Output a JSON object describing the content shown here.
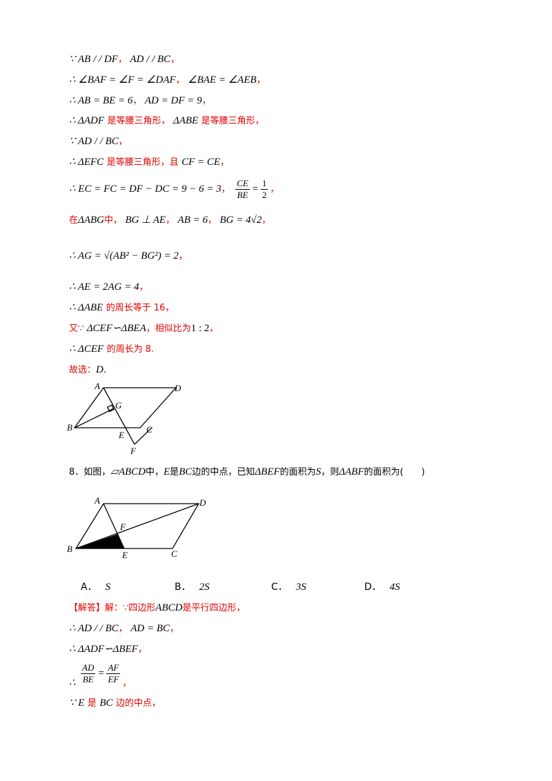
{
  "lines": {
    "l1": {
      "m": "∵ AB / / DF",
      "t": "，",
      "m2": "AD / / BC",
      "t2": "，"
    },
    "l2": {
      "m": "∴ ∠BAF = ∠F = ∠DAF",
      "t": "，",
      "m2": "∠BAE = ∠AEB",
      "t2": "，"
    },
    "l3": {
      "m": "∴ AB = BE = 6",
      "t": "，",
      "m2": "AD = DF = 9",
      "t2": "，"
    },
    "l4": {
      "m": "∴ ΔADF",
      "t": "是等腰三角形，",
      "m2": "ΔABE",
      "t2": "是等腰三角形，"
    },
    "l5": {
      "m": "∵ AD / / BC",
      "t": "，"
    },
    "l6": {
      "m": "∴ ΔEFC",
      "t": "是等腰三角形，且",
      "m2": "CF = CE",
      "t2": "，"
    },
    "l7": {
      "m": "∴ EC = FC = DF − DC = 9 − 6 = 3",
      "t": "，",
      "num": "CE",
      "den": "BE",
      "eq": "=",
      "num2": "1",
      "den2": "2",
      "t2": "，"
    },
    "l8": {
      "t0": "在",
      "m": "ΔABG",
      "t": "中，",
      "m2": "BG ⊥ AE",
      "t2": "，",
      "m3": "AB = 6",
      "t3": "，",
      "m4": "BG = 4√2",
      "t4": "，"
    },
    "l9": {
      "m": "∴ AG = √(AB² − BG²) = 2",
      "t": "，"
    },
    "l10": {
      "m": "∴ AE = 2AG = 4",
      "t": "，"
    },
    "l11": {
      "m": "∴ ΔABE",
      "t": "的周长等于 16，"
    },
    "l12": {
      "t0": "又∵",
      "m": "ΔCEF∽ΔBEA",
      "t": "，相似比为",
      "m2": "1 : 2",
      "t2": "，"
    },
    "l13": {
      "m": "∴ ΔCEF",
      "t": "的周长为 8."
    },
    "l14": {
      "t": "故选：",
      "m": "D",
      "t2": "."
    }
  },
  "figure1": {
    "labels": [
      "A",
      "D",
      "G",
      "B",
      "E",
      "C",
      "F"
    ]
  },
  "question": {
    "number": "8．如图，",
    "shape": "▱ABCD",
    "t1": "中，",
    "e": "E",
    "t2": "是",
    "bc": "BC",
    "t3": "边的中点，已知",
    "bef": "ΔBEF",
    "t4": "的面积为",
    "s": "S",
    "t5": "，则",
    "abf": "ΔABF",
    "t6": "的面积为",
    "paren": "(　　)"
  },
  "figure2": {
    "labels": [
      "A",
      "D",
      "F",
      "B",
      "E",
      "C"
    ]
  },
  "options": [
    {
      "letter": "A．",
      "value": "S"
    },
    {
      "letter": "B．",
      "value": "2S"
    },
    {
      "letter": "C．",
      "value": "3S"
    },
    {
      "letter": "D．",
      "value": "4S"
    }
  ],
  "answer": {
    "a1": {
      "tag": "【解答】",
      "t": "解：∵四边形",
      "m": "ABCD",
      "t2": "是平行四边形，"
    },
    "a2": {
      "m": "∴ AD / / BC",
      "t": "，",
      "m2": "AD = BC",
      "t2": "，"
    },
    "a3": {
      "m": "∴ ΔADF∽ΔBEF",
      "t": "，"
    },
    "a4": {
      "pre": "∴",
      "num": "AD",
      "den": "BE",
      "eq": "=",
      "num2": "AF",
      "den2": "EF",
      "t": "，"
    },
    "a5": {
      "m": "∵ E",
      "t": "是",
      "m2": "BC",
      "t2": "边的中点，"
    }
  }
}
